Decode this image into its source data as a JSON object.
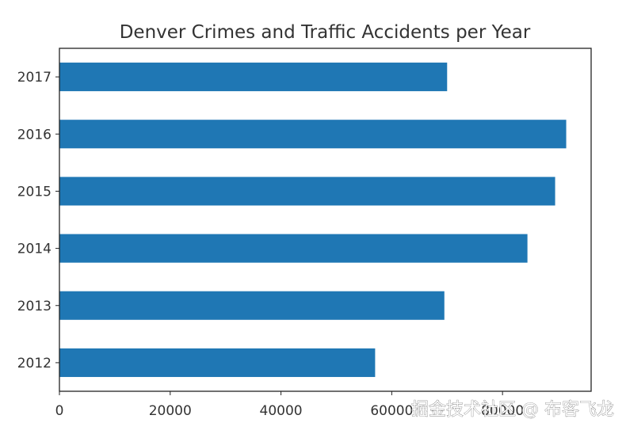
{
  "chart_data": {
    "type": "bar",
    "orientation": "horizontal",
    "title": "Denver Crimes and Traffic Accidents per Year",
    "xlabel": "",
    "ylabel": "",
    "categories": [
      "2012",
      "2013",
      "2014",
      "2015",
      "2016",
      "2017"
    ],
    "values": [
      57000,
      69500,
      84500,
      89500,
      91500,
      70000
    ],
    "xlim": [
      0,
      96000
    ],
    "xticks": [
      "0",
      "20000",
      "40000",
      "60000",
      "80000"
    ],
    "bar_color": "#1f77b4",
    "grid": false,
    "legend": "none"
  },
  "watermark": "掘金技术社区 @ 布客飞龙"
}
